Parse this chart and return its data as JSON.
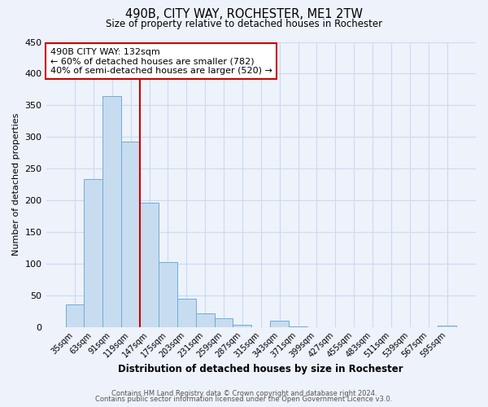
{
  "title": "490B, CITY WAY, ROCHESTER, ME1 2TW",
  "subtitle": "Size of property relative to detached houses in Rochester",
  "xlabel": "Distribution of detached houses by size in Rochester",
  "ylabel": "Number of detached properties",
  "bar_labels": [
    "35sqm",
    "63sqm",
    "91sqm",
    "119sqm",
    "147sqm",
    "175sqm",
    "203sqm",
    "231sqm",
    "259sqm",
    "287sqm",
    "315sqm",
    "343sqm",
    "371sqm",
    "399sqm",
    "427sqm",
    "455sqm",
    "483sqm",
    "511sqm",
    "539sqm",
    "567sqm",
    "595sqm"
  ],
  "bar_values": [
    35,
    233,
    365,
    293,
    196,
    103,
    44,
    22,
    14,
    4,
    0,
    10,
    1,
    0,
    0,
    0,
    0,
    0,
    0,
    0,
    2
  ],
  "bar_color": "#c8dcf0",
  "bar_edge_color": "#6baed6",
  "grid_color": "#c8dcf0",
  "background_color": "#eef2fb",
  "vline_color": "#cc0000",
  "annotation_title": "490B CITY WAY: 132sqm",
  "annotation_line1": "← 60% of detached houses are smaller (782)",
  "annotation_line2": "40% of semi-detached houses are larger (520) →",
  "annotation_box_color": "#ffffff",
  "annotation_box_edge": "#cc0000",
  "ylim": [
    0,
    450
  ],
  "yticks": [
    0,
    50,
    100,
    150,
    200,
    250,
    300,
    350,
    400,
    450
  ],
  "footer1": "Contains HM Land Registry data © Crown copyright and database right 2024.",
  "footer2": "Contains public sector information licensed under the Open Government Licence v3.0."
}
